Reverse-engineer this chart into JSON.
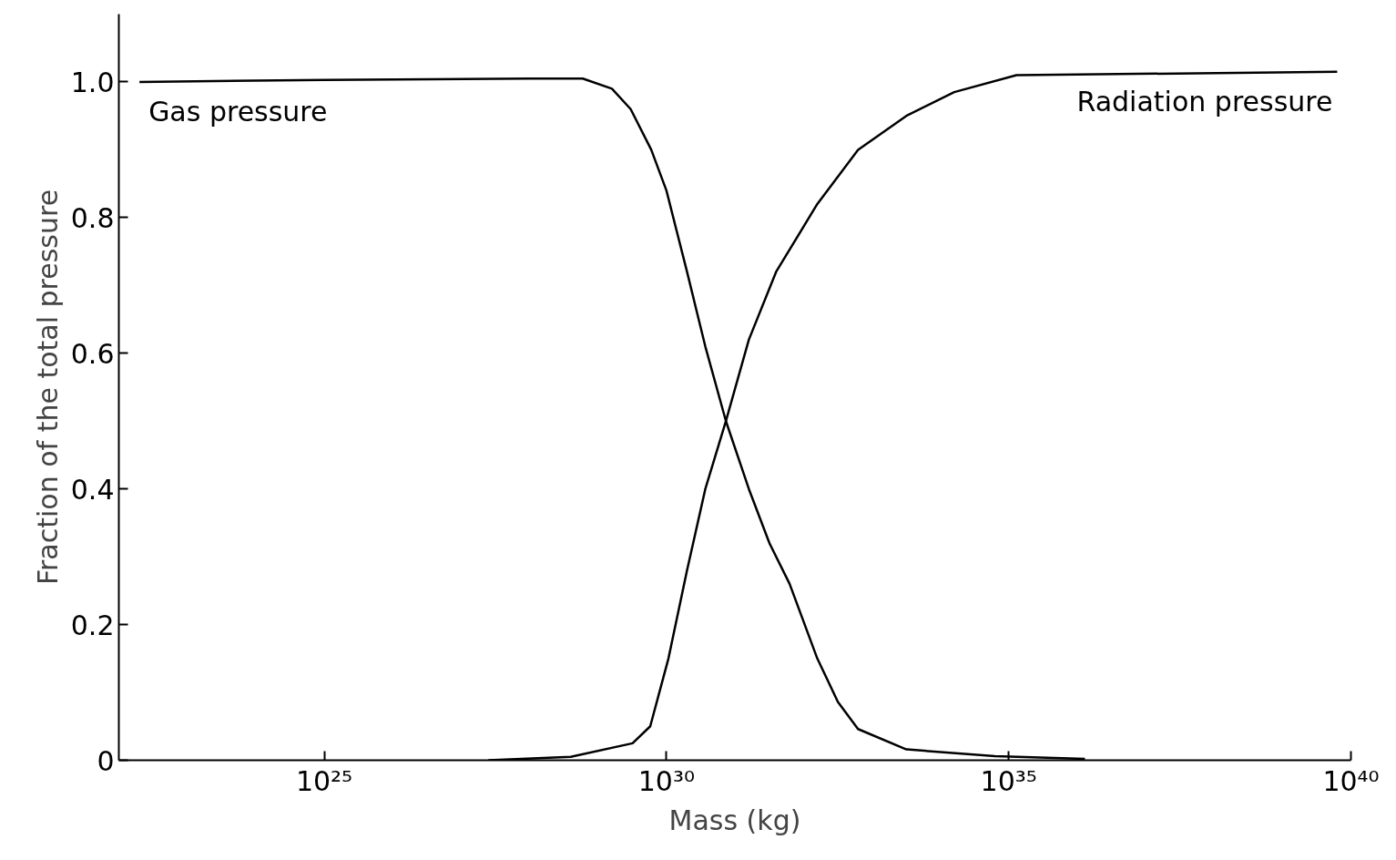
{
  "chart_data": {
    "type": "line",
    "xlabel": "Mass (kg)",
    "ylabel": "Fraction of the total pressure",
    "log": "x",
    "xlim": [
      1e+22,
      1e+40
    ],
    "xticks": [
      {
        "value": 1e+25,
        "label": "10²⁵"
      },
      {
        "value": 1e+30,
        "label": "10³⁰"
      },
      {
        "value": 1e+35,
        "label": "10³⁵"
      },
      {
        "value": 1e+40,
        "label": "10⁴⁰"
      }
    ],
    "ylim": [
      0,
      1.1
    ],
    "yticks": [
      0,
      {
        "value": 0.2,
        "label": "0.2"
      },
      {
        "value": 0.4,
        "label": "0.4"
      },
      {
        "value": 0.6,
        "label": "0.6"
      },
      {
        "value": 0.8,
        "label": "0.8"
      },
      {
        "value": 1,
        "label": "1.0"
      }
    ],
    "grid": false,
    "marker": "none",
    "line_style": "solid",
    "series": [
      {
        "name": "Gas pressure",
        "color": "#000000",
        "x": [
          2e+22,
          1e+25,
          1e+28,
          6e+28,
          1.6e+29,
          3e+29,
          6e+29,
          1e+30,
          2e+30,
          3.7e+30,
          7.4e+30,
          1.6e+31,
          3.2e+31,
          6.3e+31,
          1.6e+32,
          3.2e+32,
          6.3e+32,
          3.2e+33,
          6.3e+34,
          1.3e+36
        ],
        "values": [
          1.0,
          1.003,
          1.005,
          1.005,
          0.99,
          0.96,
          0.9,
          0.84,
          0.72,
          0.61,
          0.5,
          0.4,
          0.32,
          0.26,
          0.15,
          0.086,
          0.046,
          0.016,
          0.006,
          0.002
        ]
      },
      {
        "name": "Radiation pressure",
        "color": "#000000",
        "x": [
          2.5e+27,
          4e+28,
          3.2e+29,
          5.8e+29,
          1.07e+30,
          2e+30,
          3.7e+30,
          7.4e+30,
          1.6e+31,
          4e+31,
          1.6e+32,
          6.3e+32,
          3.2e+33,
          1.6e+34,
          1.3e+35,
          6.3e+39
        ],
        "values": [
          0,
          0.005,
          0.025,
          0.05,
          0.15,
          0.28,
          0.4,
          0.5,
          0.62,
          0.72,
          0.82,
          0.9,
          0.95,
          0.985,
          1.01,
          1.015
        ]
      }
    ]
  }
}
